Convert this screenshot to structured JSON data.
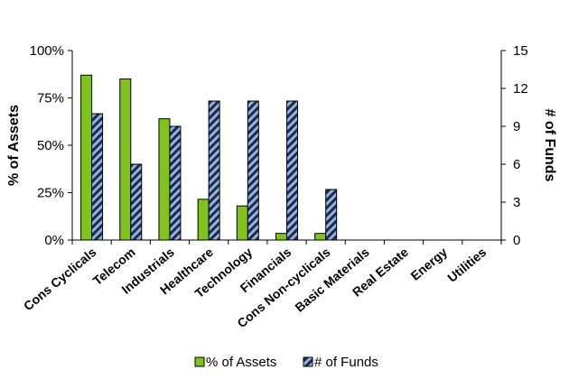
{
  "chart_data": {
    "type": "bar",
    "categories": [
      "Cons Cyclicals",
      "Telecom",
      "Industrials",
      "Healthcare",
      "Technology",
      "Financials",
      "Cons Non-cyclicals",
      "Basic Materials",
      "Real Estate",
      "Energy",
      "Utilities"
    ],
    "series": [
      {
        "name": "% of Assets",
        "axis": "left",
        "color": "#80c31c",
        "values": [
          0.87,
          0.85,
          0.64,
          0.215,
          0.18,
          0.035,
          0.035,
          0,
          0,
          0,
          0
        ]
      },
      {
        "name": "# of Funds",
        "axis": "right",
        "color": "#1f2a44",
        "hatch_color": "#8fb3e6",
        "values": [
          10,
          6,
          9,
          11,
          11,
          11,
          4,
          0,
          0,
          0,
          0
        ]
      }
    ],
    "ylabel": "% of Assets",
    "y2label": "# of Funds",
    "ylim": [
      0,
      1
    ],
    "y2lim": [
      0,
      15
    ],
    "yticks": [
      "0%",
      "25%",
      "50%",
      "75%",
      "100%"
    ],
    "y2ticks": [
      "0",
      "3",
      "6",
      "9",
      "12",
      "15"
    ],
    "legend_position": "bottom",
    "grid": false
  }
}
